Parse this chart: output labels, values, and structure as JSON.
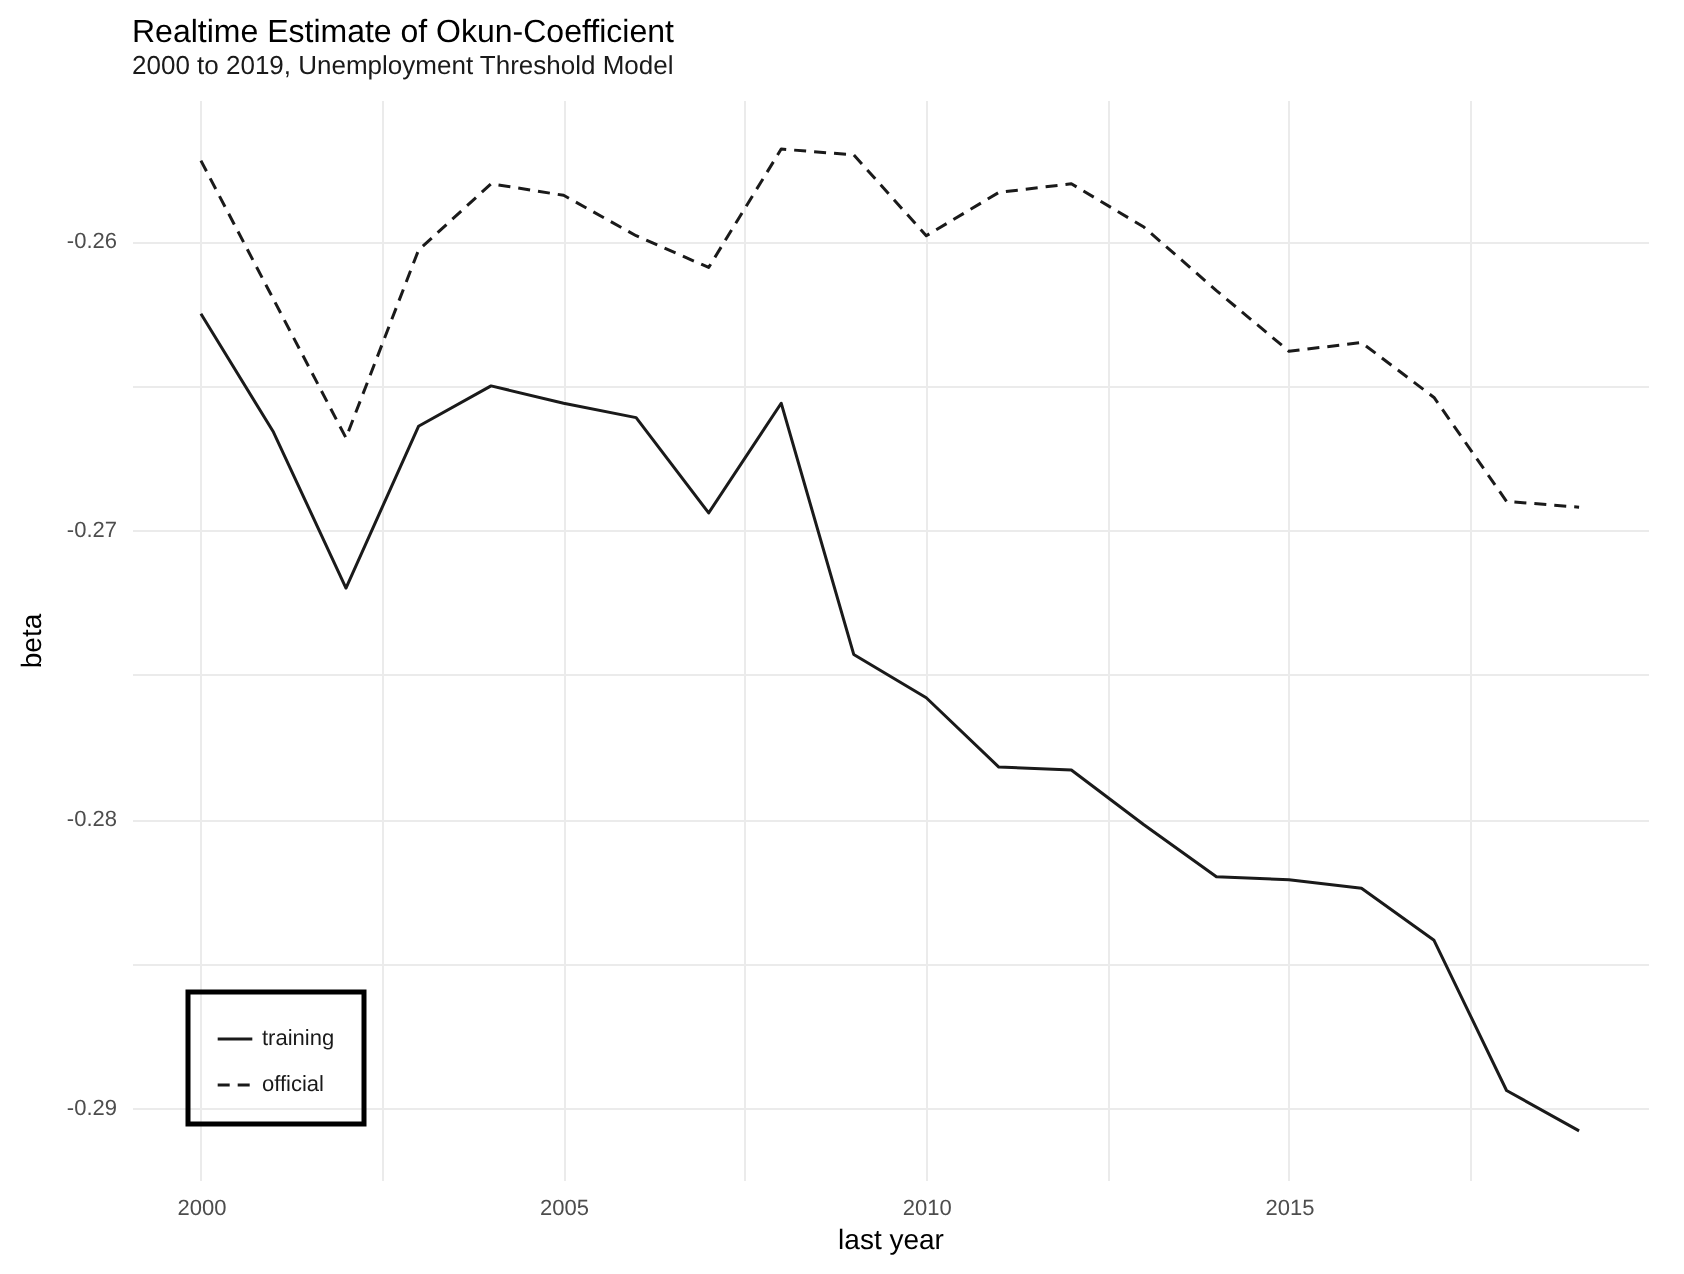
{
  "chart_data": {
    "type": "line",
    "title": "Realtime Estimate of Okun-Coefficient",
    "subtitle": "2000 to 2019, Unemployment Threshold Model",
    "xlabel": "last year",
    "ylabel": "beta",
    "x": [
      2000,
      2001,
      2002,
      2003,
      2004,
      2005,
      2006,
      2007,
      2008,
      2009,
      2010,
      2011,
      2012,
      2013,
      2014,
      2015,
      2016,
      2017,
      2018,
      2019
    ],
    "series": [
      {
        "name": "training",
        "color": "#1a1a1a",
        "line_style": "solid",
        "values": [
          -0.2625,
          -0.2666,
          -0.272,
          -0.2664,
          -0.265,
          -0.2656,
          -0.2661,
          -0.2694,
          -0.2656,
          -0.2743,
          -0.2758,
          -0.2782,
          -0.2783,
          -0.2802,
          -0.282,
          -0.2821,
          -0.2824,
          -0.2842,
          -0.2894,
          -0.2908
        ]
      },
      {
        "name": "official",
        "color": "#1a1a1a",
        "line_style": "dashed",
        "values": [
          -0.2572,
          -0.262,
          -0.2668,
          -0.2603,
          -0.258,
          -0.2584,
          -0.2598,
          -0.2609,
          -0.2568,
          -0.257,
          -0.2598,
          -0.2583,
          -0.258,
          -0.2595,
          -0.2617,
          -0.2638,
          -0.2635,
          -0.2654,
          -0.269,
          -0.2692
        ]
      }
    ],
    "xlim": [
      1999.05,
      2019.95
    ],
    "xticks": [
      2000,
      {
        "value": 2002.5,
        "label": null
      },
      2005,
      {
        "value": 2007.5,
        "label": null
      },
      2010,
      {
        "value": 2012.5,
        "label": null
      },
      2015,
      {
        "value": 2017.5,
        "label": null
      }
    ],
    "ylim": [
      -0.2925,
      -0.2551
    ],
    "yticks": [
      -0.29,
      {
        "value": -0.285,
        "label": null
      },
      -0.28,
      {
        "value": -0.275,
        "label": null
      },
      -0.27,
      {
        "value": -0.265,
        "label": null
      },
      -0.26
    ],
    "grid": true,
    "legend": "bottom left",
    "marker": "none"
  }
}
